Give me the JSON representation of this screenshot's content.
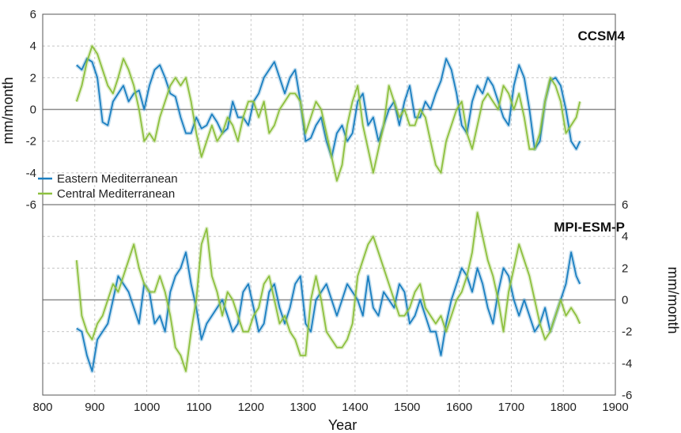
{
  "chart_data": [
    {
      "type": "line",
      "panel_label": "CCSM4",
      "ylabel": "mm/month",
      "ylim": [
        -6,
        6
      ],
      "yticks": [
        -6,
        -4,
        -2,
        0,
        2,
        4,
        6
      ],
      "xlim": [
        800,
        1900
      ],
      "grid": true,
      "legend": "bottom-left",
      "series": [
        {
          "name": "Eastern Mediterranean",
          "color": "#1a7fc1",
          "x": [
            865,
            875,
            885,
            895,
            905,
            915,
            925,
            935,
            945,
            955,
            965,
            975,
            985,
            995,
            1005,
            1015,
            1025,
            1035,
            1045,
            1055,
            1065,
            1075,
            1085,
            1095,
            1105,
            1115,
            1125,
            1135,
            1145,
            1155,
            1165,
            1175,
            1185,
            1195,
            1205,
            1215,
            1225,
            1235,
            1245,
            1255,
            1265,
            1275,
            1285,
            1295,
            1305,
            1315,
            1325,
            1335,
            1345,
            1355,
            1365,
            1375,
            1385,
            1395,
            1405,
            1415,
            1425,
            1435,
            1445,
            1455,
            1465,
            1475,
            1485,
            1495,
            1505,
            1515,
            1525,
            1535,
            1545,
            1555,
            1565,
            1575,
            1585,
            1595,
            1605,
            1615,
            1625,
            1635,
            1645,
            1655,
            1665,
            1675,
            1685,
            1695,
            1705,
            1715,
            1725,
            1735,
            1745,
            1755,
            1765,
            1775,
            1785,
            1795,
            1805,
            1815,
            1825,
            1832
          ],
          "values": [
            2.8,
            2.5,
            3.2,
            3.0,
            2.0,
            -0.8,
            -1.0,
            0.5,
            1.0,
            1.5,
            0.5,
            1.0,
            1.2,
            0.0,
            1.5,
            2.5,
            2.8,
            2.0,
            1.0,
            0.8,
            -0.5,
            -1.5,
            -1.5,
            -0.5,
            -1.2,
            -1.0,
            -0.3,
            -0.8,
            -1.5,
            -1.2,
            0.5,
            -0.5,
            -0.5,
            -1.0,
            0.5,
            1.0,
            2.0,
            2.5,
            3.0,
            2.0,
            1.0,
            2.0,
            2.5,
            0.5,
            -2.0,
            -1.8,
            -1.0,
            -0.5,
            -2.0,
            -3.0,
            -1.5,
            -1.0,
            -2.0,
            -1.5,
            0.5,
            1.0,
            -1.0,
            -0.5,
            -2.0,
            -1.0,
            0.0,
            0.5,
            -1.0,
            0.5,
            1.5,
            -0.5,
            -0.5,
            0.5,
            0.0,
            1.0,
            1.8,
            3.2,
            2.5,
            1.0,
            -1.0,
            -1.5,
            0.5,
            1.5,
            1.0,
            2.0,
            1.5,
            0.5,
            -0.5,
            -1.0,
            1.5,
            2.8,
            2.0,
            0.0,
            -2.5,
            -2.0,
            0.5,
            1.8,
            2.0,
            1.5,
            0.0,
            -2.0,
            -2.5,
            -2.0
          ]
        },
        {
          "name": "Central Mediterranean",
          "color": "#8dc03e",
          "x": [
            865,
            875,
            885,
            895,
            905,
            915,
            925,
            935,
            945,
            955,
            965,
            975,
            985,
            995,
            1005,
            1015,
            1025,
            1035,
            1045,
            1055,
            1065,
            1075,
            1085,
            1095,
            1105,
            1115,
            1125,
            1135,
            1145,
            1155,
            1165,
            1175,
            1185,
            1195,
            1205,
            1215,
            1225,
            1235,
            1245,
            1255,
            1265,
            1275,
            1285,
            1295,
            1305,
            1315,
            1325,
            1335,
            1345,
            1355,
            1365,
            1375,
            1385,
            1395,
            1405,
            1415,
            1425,
            1435,
            1445,
            1455,
            1465,
            1475,
            1485,
            1495,
            1505,
            1515,
            1525,
            1535,
            1545,
            1555,
            1565,
            1575,
            1585,
            1595,
            1605,
            1615,
            1625,
            1635,
            1645,
            1655,
            1665,
            1675,
            1685,
            1695,
            1705,
            1715,
            1725,
            1735,
            1745,
            1755,
            1765,
            1775,
            1785,
            1795,
            1805,
            1815,
            1825,
            1832
          ],
          "values": [
            0.5,
            1.5,
            3.0,
            4.0,
            3.5,
            2.5,
            1.5,
            1.0,
            2.0,
            3.2,
            2.5,
            1.5,
            0.0,
            -2.0,
            -1.5,
            -2.0,
            -0.5,
            0.5,
            1.5,
            2.0,
            1.5,
            2.0,
            0.5,
            -1.5,
            -3.0,
            -2.0,
            -1.0,
            -2.0,
            -1.5,
            -0.5,
            -1.0,
            -2.0,
            -0.5,
            0.5,
            0.5,
            -0.5,
            0.5,
            -1.5,
            -1.0,
            0.0,
            0.5,
            1.0,
            1.0,
            0.5,
            -1.5,
            -0.5,
            0.5,
            0.0,
            -1.5,
            -3.0,
            -4.5,
            -3.5,
            -1.0,
            0.5,
            1.5,
            -1.0,
            -2.5,
            -4.0,
            -2.5,
            -1.0,
            1.5,
            0.5,
            -0.5,
            0.0,
            -1.0,
            -1.0,
            0.0,
            -0.5,
            -2.0,
            -3.5,
            -4.0,
            -2.0,
            -1.0,
            0.0,
            0.5,
            -1.5,
            -2.5,
            -1.0,
            0.5,
            1.0,
            0.5,
            0.0,
            1.5,
            1.0,
            0.0,
            1.0,
            -0.5,
            -2.5,
            -2.5,
            -1.5,
            0.5,
            2.0,
            1.5,
            0.5,
            -1.5,
            -1.0,
            -0.5,
            0.5
          ]
        }
      ]
    },
    {
      "type": "line",
      "panel_label": "MPI-ESM-P",
      "ylabel": "mm/month",
      "ylim": [
        -6,
        6
      ],
      "yticks": [
        -6,
        -4,
        -2,
        0,
        2,
        4,
        6
      ],
      "xlabel": "Year",
      "xlim": [
        800,
        1900
      ],
      "xticks": [
        800,
        900,
        1000,
        1100,
        1200,
        1300,
        1400,
        1500,
        1600,
        1700,
        1800,
        1900
      ],
      "grid": true,
      "series": [
        {
          "name": "Eastern Mediterranean",
          "color": "#1a7fc1",
          "x": [
            865,
            875,
            885,
            895,
            905,
            915,
            925,
            935,
            945,
            955,
            965,
            975,
            985,
            995,
            1005,
            1015,
            1025,
            1035,
            1045,
            1055,
            1065,
            1075,
            1085,
            1095,
            1105,
            1115,
            1125,
            1135,
            1145,
            1155,
            1165,
            1175,
            1185,
            1195,
            1205,
            1215,
            1225,
            1235,
            1245,
            1255,
            1265,
            1275,
            1285,
            1295,
            1305,
            1315,
            1325,
            1335,
            1345,
            1355,
            1365,
            1375,
            1385,
            1395,
            1405,
            1415,
            1425,
            1435,
            1445,
            1455,
            1465,
            1475,
            1485,
            1495,
            1505,
            1515,
            1525,
            1535,
            1545,
            1555,
            1565,
            1575,
            1585,
            1595,
            1605,
            1615,
            1625,
            1635,
            1645,
            1655,
            1665,
            1675,
            1685,
            1695,
            1705,
            1715,
            1725,
            1735,
            1745,
            1755,
            1765,
            1775,
            1785,
            1795,
            1805,
            1815,
            1825,
            1832
          ],
          "values": [
            -1.8,
            -2.0,
            -3.5,
            -4.5,
            -2.5,
            -2.0,
            -1.5,
            0.0,
            1.5,
            1.0,
            0.5,
            -0.5,
            -1.5,
            1.0,
            0.5,
            -1.5,
            -1.0,
            -2.0,
            0.5,
            1.5,
            2.0,
            3.0,
            1.0,
            -0.5,
            -2.5,
            -1.5,
            -1.0,
            -0.5,
            0.0,
            -1.0,
            -2.0,
            -1.5,
            0.5,
            1.0,
            -0.5,
            -2.0,
            -1.5,
            0.5,
            1.0,
            -0.5,
            -1.5,
            -0.5,
            1.0,
            1.5,
            -1.5,
            -2.0,
            0.0,
            0.5,
            1.0,
            0.0,
            -1.0,
            0.0,
            1.0,
            0.5,
            0.0,
            -1.0,
            1.5,
            -0.5,
            -1.0,
            0.5,
            0.0,
            -0.5,
            1.0,
            0.5,
            -1.5,
            -1.0,
            0.0,
            -1.0,
            -2.0,
            -2.0,
            -3.5,
            -1.5,
            0.0,
            1.0,
            2.0,
            1.5,
            0.5,
            2.0,
            1.0,
            -0.5,
            -1.5,
            0.5,
            2.0,
            1.5,
            0.0,
            -1.0,
            0.0,
            -1.0,
            -2.0,
            -1.5,
            -0.5,
            -2.0,
            -1.0,
            0.0,
            1.0,
            3.0,
            1.5,
            1.0
          ]
        },
        {
          "name": "Central Mediterranean",
          "color": "#8dc03e",
          "x": [
            865,
            875,
            885,
            895,
            905,
            915,
            925,
            935,
            945,
            955,
            965,
            975,
            985,
            995,
            1005,
            1015,
            1025,
            1035,
            1045,
            1055,
            1065,
            1075,
            1085,
            1095,
            1105,
            1115,
            1125,
            1135,
            1145,
            1155,
            1165,
            1175,
            1185,
            1195,
            1205,
            1215,
            1225,
            1235,
            1245,
            1255,
            1265,
            1275,
            1285,
            1295,
            1305,
            1315,
            1325,
            1335,
            1345,
            1355,
            1365,
            1375,
            1385,
            1395,
            1405,
            1415,
            1425,
            1435,
            1445,
            1455,
            1465,
            1475,
            1485,
            1495,
            1505,
            1515,
            1525,
            1535,
            1545,
            1555,
            1565,
            1575,
            1585,
            1595,
            1605,
            1615,
            1625,
            1635,
            1645,
            1655,
            1665,
            1675,
            1685,
            1695,
            1705,
            1715,
            1725,
            1735,
            1745,
            1755,
            1765,
            1775,
            1785,
            1795,
            1805,
            1815,
            1825,
            1832
          ],
          "values": [
            2.5,
            -1.0,
            -2.0,
            -2.5,
            -1.5,
            -1.0,
            0.0,
            1.0,
            0.5,
            1.5,
            2.5,
            3.5,
            2.0,
            1.0,
            0.5,
            0.5,
            1.5,
            0.5,
            -1.0,
            -3.0,
            -3.5,
            -4.5,
            -2.0,
            0.0,
            3.5,
            4.5,
            1.5,
            0.5,
            -1.0,
            0.5,
            0.0,
            -1.0,
            -2.0,
            -2.0,
            -1.0,
            -0.5,
            1.0,
            1.5,
            0.0,
            -1.5,
            -1.0,
            -2.0,
            -2.5,
            -3.5,
            -3.5,
            0.0,
            1.5,
            0.0,
            -2.0,
            -2.5,
            -3.0,
            -3.0,
            -2.5,
            -1.5,
            1.5,
            2.5,
            3.5,
            4.0,
            3.0,
            2.0,
            1.0,
            0.0,
            -1.0,
            -1.0,
            -0.5,
            0.5,
            1.0,
            -0.5,
            -1.0,
            -1.5,
            -1.0,
            -2.0,
            -1.0,
            0.0,
            0.5,
            1.5,
            3.0,
            5.5,
            4.0,
            2.5,
            1.5,
            0.0,
            -2.0,
            0.5,
            2.0,
            3.5,
            2.5,
            1.5,
            0.0,
            -1.5,
            -2.5,
            -2.0,
            -1.0,
            0.0,
            -1.0,
            -0.5,
            -1.0,
            -1.5
          ]
        }
      ]
    }
  ]
}
